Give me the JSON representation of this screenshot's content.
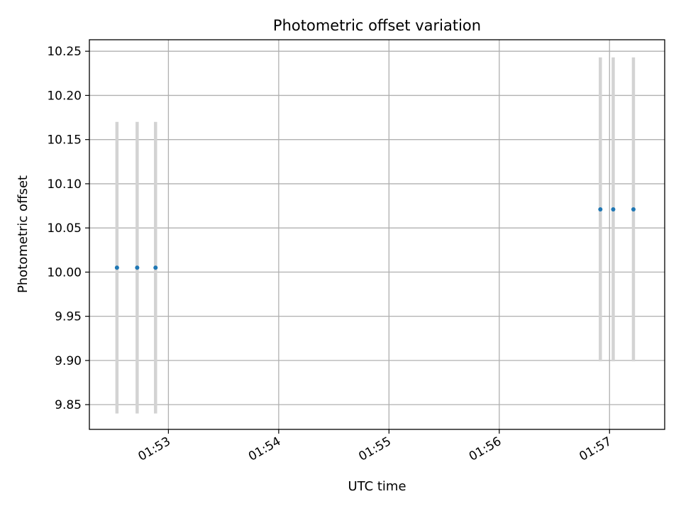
{
  "chart_data": {
    "type": "scatter",
    "title": "Photometric offset variation",
    "xlabel": "UTC time",
    "ylabel": "Photometric offset",
    "x_axis_kind": "time",
    "xlim": [
      "01:52:17",
      "01:57:30"
    ],
    "ylim": [
      9.822,
      10.263
    ],
    "grid": true,
    "x_ticks": [
      "01:53",
      "01:54",
      "01:55",
      "01:56",
      "01:57"
    ],
    "y_ticks": [
      9.85,
      9.9,
      9.95,
      10.0,
      10.05,
      10.1,
      10.15,
      10.2,
      10.25
    ],
    "y_tick_labels": [
      "9.85",
      "9.90",
      "9.95",
      "10.00",
      "10.05",
      "10.10",
      "10.15",
      "10.20",
      "10.25"
    ],
    "series": [
      {
        "marker_color": "#1f77b4",
        "errorbar_color": "#d3d3d3",
        "points": [
          {
            "x": "01:52:32",
            "y": 10.005,
            "yerr": 0.165
          },
          {
            "x": "01:52:43",
            "y": 10.005,
            "yerr": 0.165
          },
          {
            "x": "01:52:53",
            "y": 10.005,
            "yerr": 0.165
          },
          {
            "x": "01:56:55",
            "y": 10.071,
            "yerr": 0.172
          },
          {
            "x": "01:57:02",
            "y": 10.071,
            "yerr": 0.172
          },
          {
            "x": "01:57:13",
            "y": 10.071,
            "yerr": 0.172
          }
        ]
      }
    ]
  }
}
